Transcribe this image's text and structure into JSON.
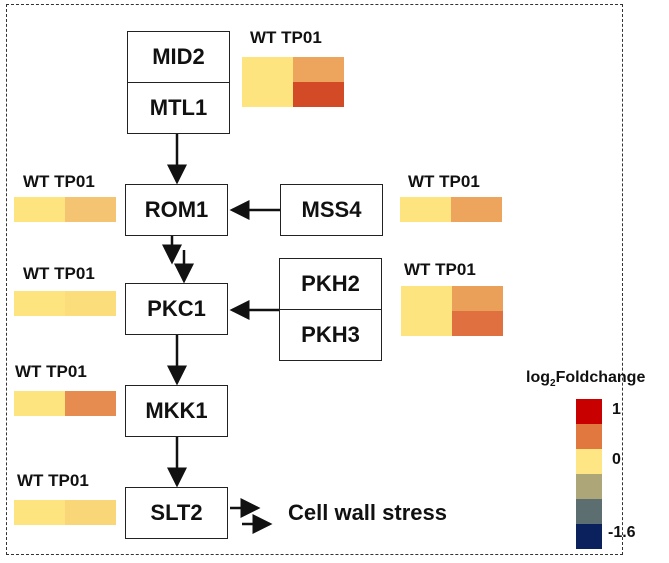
{
  "column_label": "WT TP01",
  "nodes": {
    "mid2": "MID2",
    "mtl1": "MTL1",
    "rom1": "ROM1",
    "mss4": "MSS4",
    "pkc1": "PKC1",
    "pkh2": "PKH2",
    "pkh3": "PKH3",
    "mkk1": "MKK1",
    "slt2": "SLT2"
  },
  "output_label": "Cell wall stress",
  "heatmaps": {
    "mid2_mtl1": [
      [
        "#fde47f",
        "#eda45c"
      ],
      [
        "#fde47f",
        "#d34a27"
      ]
    ],
    "rom1": [
      [
        "#fde47f",
        "#f5c472"
      ]
    ],
    "mss4": [
      [
        "#fde47f",
        "#eda45c"
      ]
    ],
    "pkc1": [
      [
        "#fde47f",
        "#fbdd7b"
      ]
    ],
    "pkh2_pkh3": [
      [
        "#fde47f",
        "#eba05a"
      ],
      [
        "#fde47f",
        "#e0703f"
      ]
    ],
    "mkk1": [
      [
        "#fde47f",
        "#e78c50"
      ]
    ],
    "slt2": [
      [
        "#fde47f",
        "#f9d778"
      ]
    ]
  },
  "legend": {
    "title": "log",
    "title_sub": "2",
    "title_rest": "Foldchange",
    "colors": [
      "#c80000",
      "#e07840",
      "#fee685",
      "#aca678",
      "#5c6e70",
      "#0a215e"
    ],
    "labels": {
      "max": "1",
      "mid": "0",
      "min": "-1.6"
    }
  }
}
